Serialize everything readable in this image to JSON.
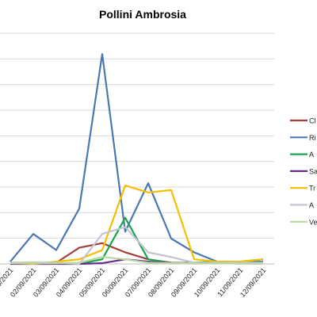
{
  "chart_data": {
    "type": "line",
    "title": "Pollini Ambrosia",
    "xlabel": "",
    "ylabel": "",
    "grid": true,
    "legend_position": "right",
    "categories": [
      "01/09/2021",
      "02/09/2021",
      "03/09/2021",
      "04/09/2021",
      "05/09/2021",
      "06/09/2021",
      "07/09/2021",
      "08/09/2021",
      "09/09/2021",
      "10/09/2021",
      "11/09/2021",
      "12/09/2021"
    ],
    "series": [
      {
        "name": "Cl",
        "color": "#a0403c",
        "values": [
          0.5,
          0.5,
          0.5,
          7,
          9,
          5,
          2,
          0.5,
          0.3,
          0.5,
          0.3,
          0.3
        ]
      },
      {
        "name": "Ri",
        "color": "#4a78b2",
        "values": [
          1,
          13,
          6,
          24,
          91,
          14,
          35,
          11,
          5,
          1,
          1,
          1
        ]
      },
      {
        "name": "A",
        "color": "#1aa550",
        "values": [
          0,
          0.5,
          0.3,
          0,
          2,
          20,
          2,
          0.3,
          0.5,
          1,
          1,
          2
        ]
      },
      {
        "name": "Sa",
        "color": "#6a2c8c",
        "values": [
          0,
          0,
          0,
          0,
          0.3,
          2,
          1,
          0.3,
          0.5,
          0.5,
          0.3,
          0.3
        ]
      },
      {
        "name": "Tr",
        "color": "#f5be00",
        "values": [
          0.5,
          0,
          1,
          2,
          6,
          34,
          31,
          32,
          2,
          1,
          1,
          2
        ]
      },
      {
        "name": "A",
        "color": "#c3c3d3",
        "values": [
          0.5,
          0.5,
          0.5,
          0,
          13,
          16,
          5,
          3,
          0.5,
          0.5,
          0.5,
          0.5
        ]
      },
      {
        "name": "Ve",
        "color": "#b8d8a0",
        "values": [
          0.3,
          0.3,
          0.3,
          0.5,
          3,
          2,
          0.5,
          0.3,
          0.3,
          0.3,
          0.3,
          0.3
        ]
      }
    ]
  }
}
